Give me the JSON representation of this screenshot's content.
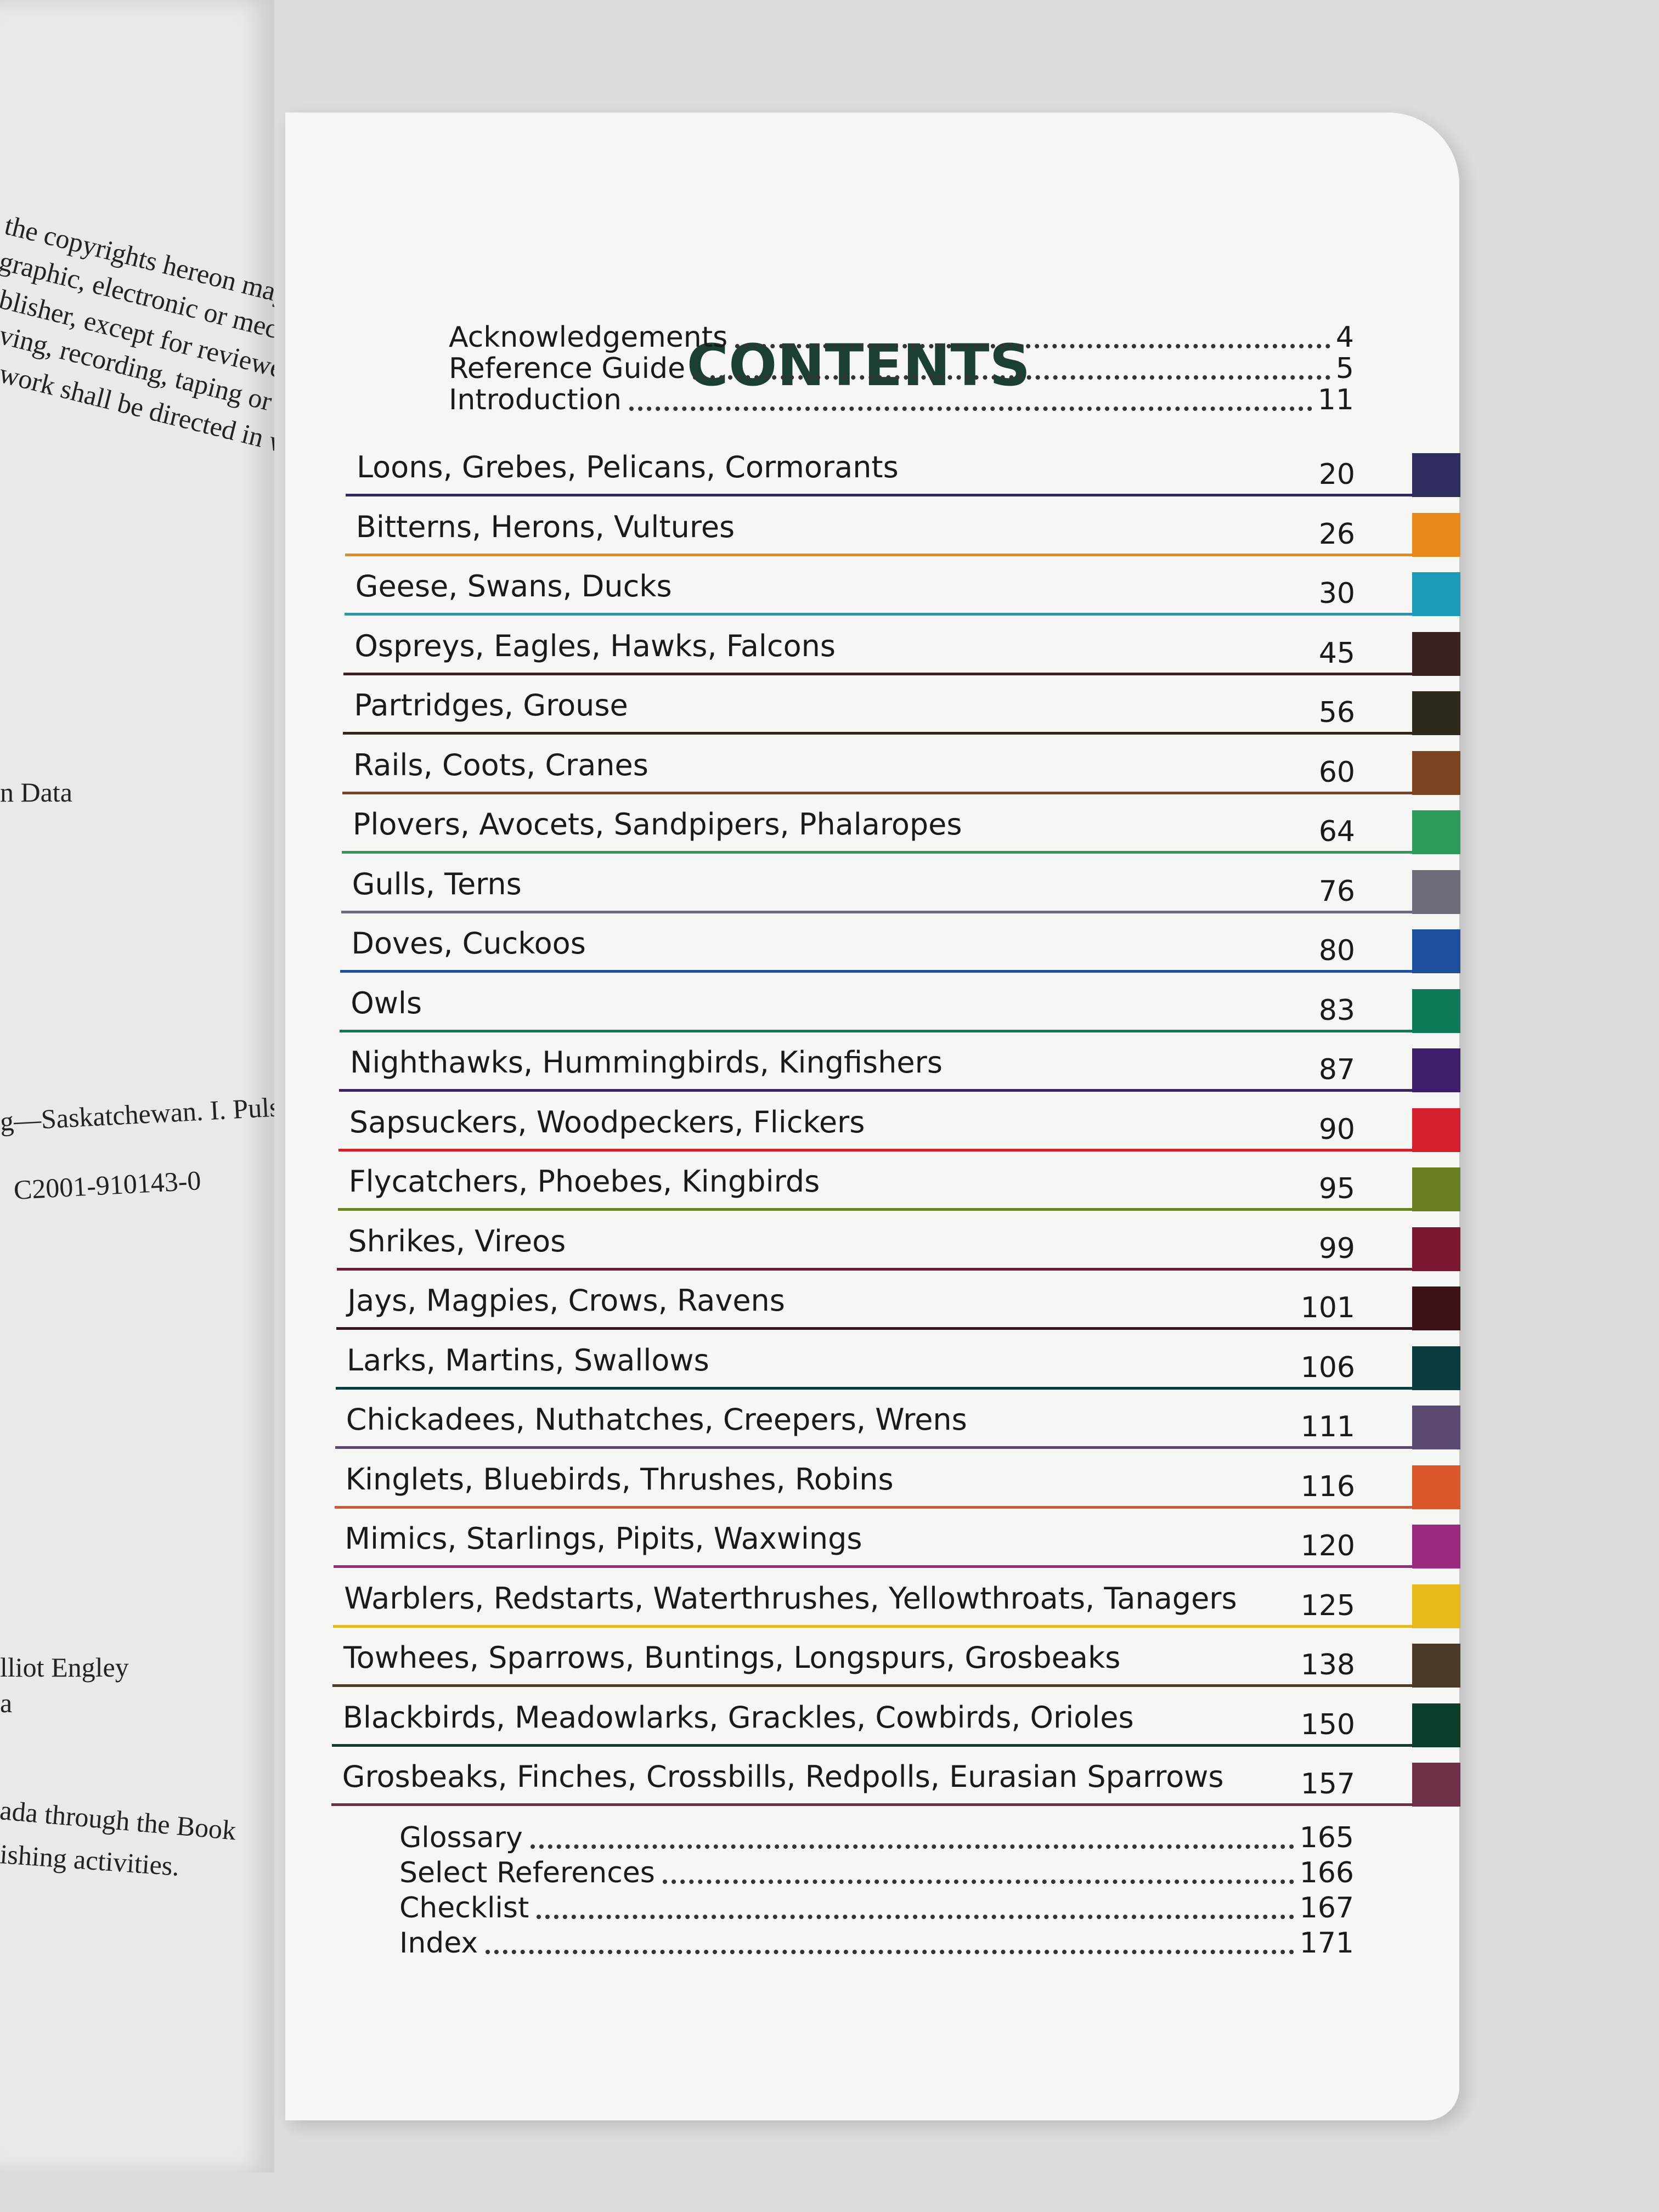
{
  "left_page": {
    "lines": [
      "the copyrights hereon may be",
      "graphic, electronic or mechan",
      "blisher, except for reviewers",
      "ving, recording, taping or stor",
      "work shall be directed in writing",
      "n Data",
      "g—Saskatchewan. I. Puls",
      "C2001-910143-0",
      "lliot Engley",
      "a",
      "ada through the Book",
      "ishing activities."
    ]
  },
  "title": "CONTENTS",
  "front_matter": [
    {
      "label": "Acknowledgements",
      "page": 4
    },
    {
      "label": "Reference Guide",
      "page": 5
    },
    {
      "label": "Introduction",
      "page": 11
    }
  ],
  "sections": [
    {
      "label": "Loons, Grebes, Pelicans, Cormorants",
      "page": 20,
      "color": "#2e2b5e"
    },
    {
      "label": "Bitterns, Herons, Vultures",
      "page": 26,
      "color": "#e8891a"
    },
    {
      "label": "Geese, Swans, Ducks",
      "page": 30,
      "color": "#1a9bb8"
    },
    {
      "label": "Ospreys, Eagles, Hawks, Falcons",
      "page": 45,
      "color": "#3b2220"
    },
    {
      "label": "Partridges, Grouse",
      "page": 56,
      "color": "#2d2a1c"
    },
    {
      "label": "Rails, Coots, Cranes",
      "page": 60,
      "color": "#7a4420"
    },
    {
      "label": "Plovers, Avocets, Sandpipers, Phalaropes",
      "page": 64,
      "color": "#2e9a5a"
    },
    {
      "label": "Gulls, Terns",
      "page": 76,
      "color": "#6f6b78"
    },
    {
      "label": "Doves, Cuckoos",
      "page": 80,
      "color": "#1f4e9c"
    },
    {
      "label": "Owls",
      "page": 83,
      "color": "#0e7a5a"
    },
    {
      "label": "Nighthawks, Hummingbirds, Kingfishers",
      "page": 87,
      "color": "#3d1f6e"
    },
    {
      "label": "Sapsuckers, Woodpeckers, Flickers",
      "page": 90,
      "color": "#d4202e"
    },
    {
      "label": "Flycatchers, Phoebes, Kingbirds",
      "page": 95,
      "color": "#6b7f25"
    },
    {
      "label": "Shrikes, Vireos",
      "page": 99,
      "color": "#7a1830"
    },
    {
      "label": "Jays, Magpies, Crows, Ravens",
      "page": 101,
      "color": "#3a1218"
    },
    {
      "label": "Larks, Martins, Swallows",
      "page": 106,
      "color": "#0b3b3c"
    },
    {
      "label": "Chickadees, Nuthatches, Creepers, Wrens",
      "page": 111,
      "color": "#5a4a72"
    },
    {
      "label": "Kinglets, Bluebirds, Thrushes, Robins",
      "page": 116,
      "color": "#d9572b"
    },
    {
      "label": "Mimics, Starlings, Pipits, Waxwings",
      "page": 120,
      "color": "#9b2a7e"
    },
    {
      "label": "Warblers, Redstarts, Waterthrushes, Yellowthroats, Tanagers",
      "page": 125,
      "color": "#e6b81a"
    },
    {
      "label": "Towhees, Sparrows, Buntings, Longspurs, Grosbeaks",
      "page": 138,
      "color": "#4a3a2a"
    },
    {
      "label": "Blackbirds, Meadowlarks, Grackles, Cowbirds, Orioles",
      "page": 150,
      "color": "#0c3e2a"
    },
    {
      "label": "Grosbeaks, Finches, Crossbills, Redpolls, Eurasian Sparrows",
      "page": 157,
      "color": "#6e3048"
    }
  ],
  "back_matter": [
    {
      "label": "Glossary",
      "page": 165
    },
    {
      "label": "Select References",
      "page": 166
    },
    {
      "label": "Checklist",
      "page": 167
    },
    {
      "label": "Index",
      "page": 171
    }
  ]
}
